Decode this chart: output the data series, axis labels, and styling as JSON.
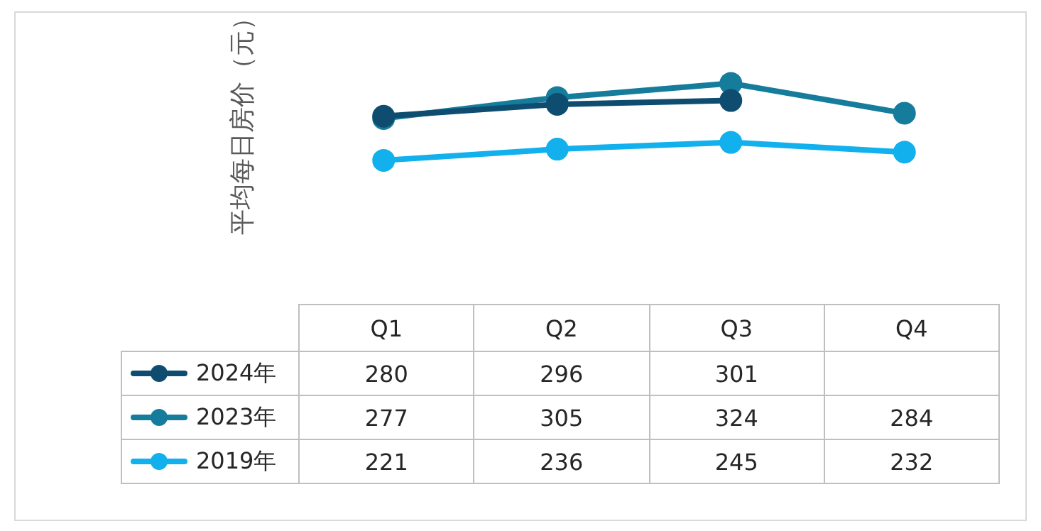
{
  "chart_data": {
    "type": "line",
    "ylabel": "平均每日房价（元）",
    "categories": [
      "Q1",
      "Q2",
      "Q3",
      "Q4"
    ],
    "series": [
      {
        "name": "2024年",
        "color": "#0e4d70",
        "values": [
          280,
          296,
          301,
          null
        ]
      },
      {
        "name": "2023年",
        "color": "#167c9c",
        "values": [
          277,
          305,
          324,
          284
        ]
      },
      {
        "name": "2019年",
        "color": "#12b0ec",
        "values": [
          221,
          236,
          245,
          232
        ]
      }
    ],
    "grid": false,
    "legend": "bottom left",
    "marker": "circle",
    "line_style": "solid",
    "data_labels": true
  }
}
